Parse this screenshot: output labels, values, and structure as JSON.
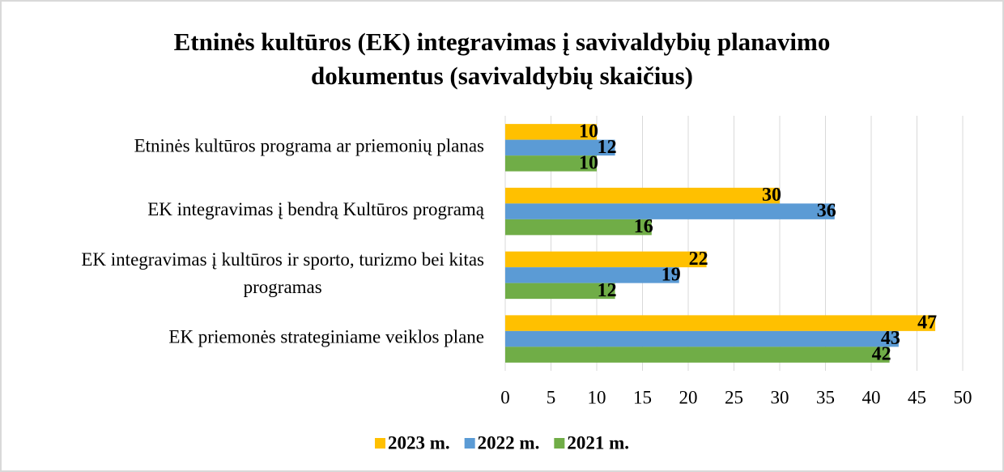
{
  "chart_data": {
    "type": "bar",
    "orientation": "horizontal",
    "title": "Etninės kultūros (EK) integravimas į savivaldybių planavimo dokumentus (savivaldybių skaičius)",
    "categories": [
      "Etninės kultūros programa ar priemonių planas",
      "EK integravimas į bendrą Kultūros programą",
      "EK integravimas į kultūros ir sporto, turizmo bei kitas programas",
      "EK priemonės strateginiame veiklos plane"
    ],
    "series": [
      {
        "name": "2023 m.",
        "color": "#ffc000",
        "values": [
          10,
          30,
          22,
          47
        ]
      },
      {
        "name": "2022 m.",
        "color": "#5b9bd5",
        "values": [
          12,
          36,
          19,
          43
        ]
      },
      {
        "name": "2021 m.",
        "color": "#70ad47",
        "values": [
          10,
          16,
          12,
          42
        ]
      }
    ],
    "xlim": [
      0,
      50
    ],
    "xticks": [
      0,
      5,
      10,
      15,
      20,
      25,
      30,
      35,
      40,
      45,
      50
    ],
    "grid": true,
    "legend": "bottom"
  }
}
